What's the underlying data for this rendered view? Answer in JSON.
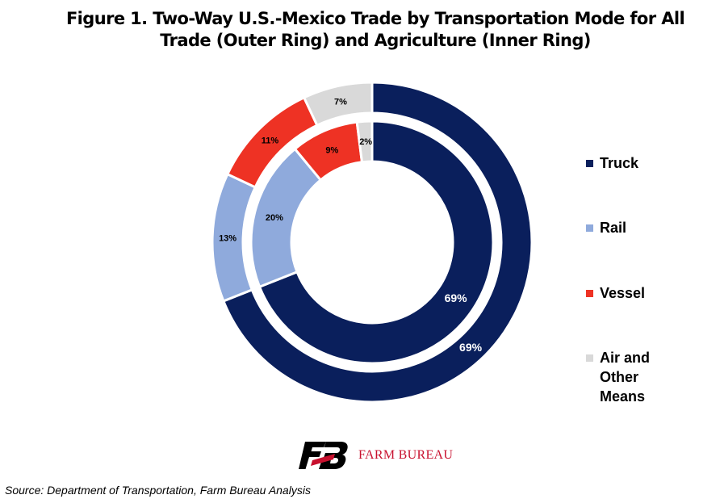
{
  "title_line1": "Figure 1. Two-Way U.S.-Mexico Trade by Transportation Mode for All",
  "title_line2": "Trade (Outer Ring) and Agriculture (Inner Ring)",
  "chart_data": {
    "type": "pie",
    "subtype": "double-donut",
    "categories": [
      "Truck",
      "Rail",
      "Vessel",
      "Air and Other Means"
    ],
    "colors": [
      "#0a1f5c",
      "#8faadc",
      "#ee3224",
      "#d9d9d9"
    ],
    "label_colors": [
      "#ffffff",
      "#000000",
      "#000000",
      "#000000"
    ],
    "series": [
      {
        "ring": "outer",
        "values": [
          69,
          13,
          11,
          7
        ],
        "labels": [
          "69%",
          "13%",
          "11%",
          "7%"
        ]
      },
      {
        "ring": "inner",
        "values": [
          69,
          20,
          9,
          2
        ],
        "labels": [
          "69%",
          "20%",
          "9%",
          "2%"
        ]
      }
    ],
    "legend_position": "right"
  },
  "legend": [
    {
      "label": "Truck",
      "color": "#0a1f5c"
    },
    {
      "label": "Rail",
      "color": "#8faadc"
    },
    {
      "label": "Vessel",
      "color": "#ee3224"
    },
    {
      "label": "Air and\nOther\nMeans",
      "color": "#d9d9d9"
    }
  ],
  "logo": {
    "text": "FARM BUREAU",
    "mark": "FB",
    "color": "#c8102e"
  },
  "source": "Source: Department of Transportation, Farm Bureau Analysis"
}
